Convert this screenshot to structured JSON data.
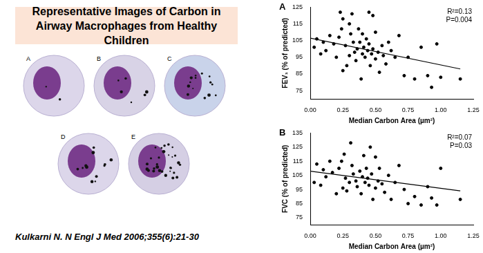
{
  "header": {
    "title": "Representative Images of Carbon in Airway Macrophages from Healthy Children"
  },
  "images": {
    "labels": [
      "A",
      "B",
      "C",
      "D",
      "E"
    ]
  },
  "citation": "Kulkarni N. N Engl J Med 2006;355(6):21-30",
  "chart_data": [
    {
      "type": "scatter",
      "title": "A",
      "color": "#000000",
      "grid": false,
      "x_label": "Median Carbon Area (µm²)",
      "y_label": "FEV₁ (% of predicted)",
      "annotations": [
        "R²=0.13",
        "P=0.004"
      ],
      "x": [
        0.03,
        0.05,
        0.08,
        0.1,
        0.12,
        0.15,
        0.18,
        0.2,
        0.22,
        0.23,
        0.24,
        0.25,
        0.25,
        0.27,
        0.28,
        0.3,
        0.3,
        0.31,
        0.32,
        0.33,
        0.34,
        0.35,
        0.36,
        0.37,
        0.38,
        0.39,
        0.4,
        0.4,
        0.41,
        0.42,
        0.43,
        0.44,
        0.45,
        0.45,
        0.46,
        0.47,
        0.48,
        0.48,
        0.5,
        0.5,
        0.52,
        0.53,
        0.55,
        0.56,
        0.58,
        0.6,
        0.62,
        0.65,
        0.68,
        0.72,
        0.75,
        0.8,
        0.85,
        0.9,
        0.93,
        0.97,
        1.0,
        1.15
      ],
      "values": [
        101,
        106,
        97,
        104,
        99,
        108,
        103,
        95,
        107,
        122,
        112,
        87,
        118,
        102,
        90,
        96,
        115,
        109,
        121,
        104,
        98,
        93,
        100,
        112,
        104,
        82,
        97,
        109,
        101,
        95,
        106,
        99,
        122,
        103,
        90,
        97,
        120,
        100,
        94,
        110,
        98,
        86,
        102,
        96,
        91,
        104,
        99,
        95,
        108,
        84,
        95,
        82,
        101,
        84,
        77,
        103,
        83,
        82
      ],
      "fit": {
        "x": [
          0.0,
          1.15
        ],
        "y": [
          106.5,
          88
        ]
      },
      "xlim": [
        0,
        1.25
      ],
      "xticks": [
        {
          "value": 0,
          "label": "0.00"
        },
        {
          "value": 0.25,
          "label": "0.25"
        },
        {
          "value": 0.5,
          "label": "0.50"
        },
        {
          "value": 0.75,
          "label": "0.75"
        },
        {
          "value": 1,
          "label": "1.00"
        },
        {
          "value": 1.25,
          "label": "1.25"
        }
      ],
      "ylim": [
        70,
        125
      ],
      "yticks": [
        75,
        85,
        95,
        105,
        115,
        125
      ]
    },
    {
      "type": "scatter",
      "title": "B",
      "color": "#000000",
      "grid": false,
      "x_label": "Median Carbon Area (µm²)",
      "y_label": "FVC (% of predicted)",
      "annotations": [
        "R²=0.07",
        "P=0.03"
      ],
      "x": [
        0.03,
        0.05,
        0.08,
        0.1,
        0.12,
        0.15,
        0.17,
        0.2,
        0.22,
        0.24,
        0.25,
        0.26,
        0.27,
        0.28,
        0.3,
        0.31,
        0.32,
        0.33,
        0.35,
        0.36,
        0.38,
        0.39,
        0.4,
        0.41,
        0.42,
        0.43,
        0.44,
        0.45,
        0.46,
        0.47,
        0.48,
        0.5,
        0.5,
        0.52,
        0.53,
        0.55,
        0.57,
        0.6,
        0.62,
        0.65,
        0.68,
        0.72,
        0.75,
        0.8,
        0.85,
        0.9,
        0.93,
        0.97,
        1.0,
        1.15
      ],
      "values": [
        100,
        113,
        98,
        109,
        104,
        115,
        107,
        92,
        110,
        115,
        96,
        120,
        103,
        94,
        100,
        128,
        112,
        106,
        101,
        97,
        108,
        92,
        104,
        119,
        100,
        110,
        103,
        98,
        125,
        106,
        88,
        96,
        118,
        101,
        110,
        99,
        93,
        105,
        88,
        100,
        112,
        95,
        85,
        90,
        84,
        97,
        89,
        84,
        110,
        88
      ],
      "fit": {
        "x": [
          0.0,
          1.15
        ],
        "y": [
          108,
          94
        ]
      },
      "xlim": [
        0,
        1.25
      ],
      "xticks": [
        {
          "value": 0,
          "label": "0.00"
        },
        {
          "value": 0.25,
          "label": "0.25"
        },
        {
          "value": 0.5,
          "label": "0.50"
        },
        {
          "value": 0.75,
          "label": "0.75"
        },
        {
          "value": 1,
          "label": "1.00"
        },
        {
          "value": 1.25,
          "label": "1.25"
        }
      ],
      "ylim": [
        70,
        135
      ],
      "yticks": [
        75,
        85,
        95,
        105,
        115,
        125,
        135
      ]
    }
  ]
}
